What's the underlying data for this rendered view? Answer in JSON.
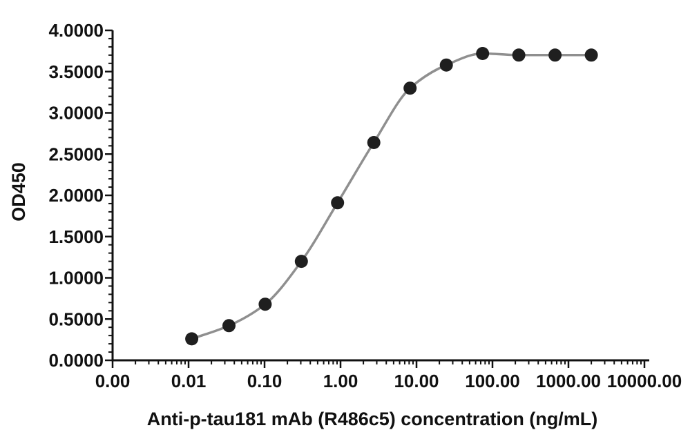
{
  "figure": {
    "background_color": "#ffffff",
    "axis_color": "#111111",
    "text_color": "#111111"
  },
  "chart_data": {
    "type": "scatter",
    "subtype": "dose-response-curve",
    "title": "",
    "xlabel": "Anti-p-tau181 mAb (R486c5) concentration (ng/mL)",
    "ylabel": "OD450",
    "x_scale": "log10",
    "grid": false,
    "legend_position": "none",
    "x_tick_labels": [
      "0.00",
      "0.01",
      "0.10",
      "1.00",
      "10.00",
      "100.00",
      "1000.00",
      "10000.00"
    ],
    "y_tick_labels": [
      "0.0000",
      "0.5000",
      "1.0000",
      "1.5000",
      "2.0000",
      "2.5000",
      "3.0000",
      "3.5000",
      "4.0000"
    ],
    "y_tick_values": [
      0,
      0.5,
      1,
      1.5,
      2,
      2.5,
      3,
      3.5,
      4
    ],
    "ylim": [
      0,
      4
    ],
    "y_minor_step": 0.1,
    "series": [
      {
        "x": [
          0.011,
          0.034,
          0.102,
          0.305,
          0.914,
          2.74,
          8.23,
          24.7,
          74.1,
          222.2,
          666.7,
          2000
        ],
        "y": [
          0.26,
          0.42,
          0.68,
          1.2,
          1.91,
          2.64,
          3.3,
          3.58,
          3.72,
          3.7,
          3.7,
          3.7
        ],
        "line_color": "#8f8f8f",
        "marker_color": "#1f1f1f",
        "marker_shape": "circle"
      }
    ]
  }
}
